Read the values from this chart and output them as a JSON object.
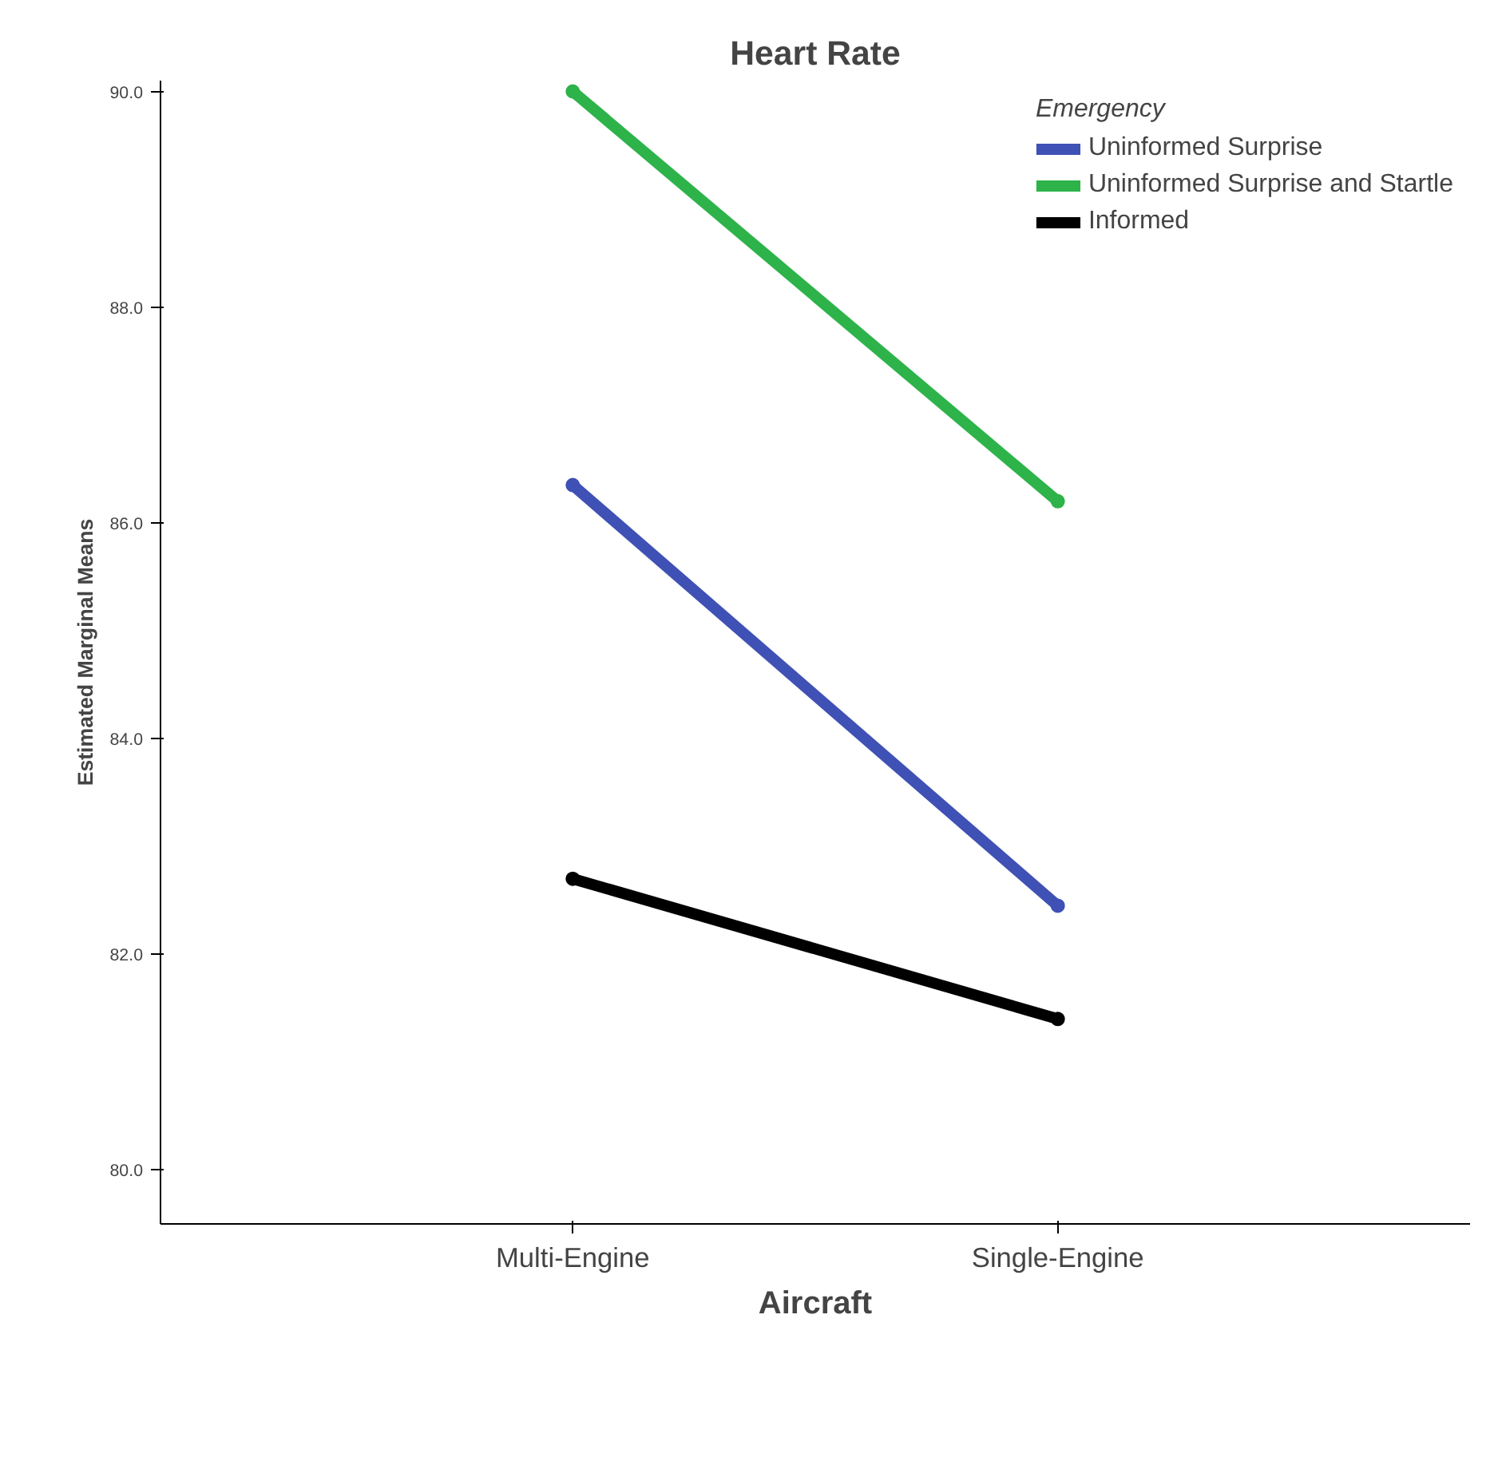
{
  "chart_data": {
    "type": "line",
    "title": "Heart Rate",
    "xlabel": "Aircraft",
    "ylabel": "Estimated Marginal Means",
    "legend_title": "Emergency",
    "categories": [
      "Multi-Engine",
      "Single-Engine"
    ],
    "series": [
      {
        "name": "Uninformed Surprise",
        "color": "#3f51b5",
        "values": [
          86.35,
          82.45
        ]
      },
      {
        "name": "Uninformed Surprise and Startle",
        "color": "#2db34a",
        "values": [
          90.0,
          86.2
        ]
      },
      {
        "name": "Informed",
        "color": "#000000",
        "values": [
          82.7,
          81.4
        ]
      }
    ],
    "ylim": [
      79.5,
      90.1
    ],
    "yticks": [
      {
        "value": 80,
        "label": "80.0"
      },
      {
        "value": 82,
        "label": "82.0"
      },
      {
        "value": 84,
        "label": "84.0"
      },
      {
        "value": 86,
        "label": "86.0"
      },
      {
        "value": 88,
        "label": "88.0"
      },
      {
        "value": 90,
        "label": "90.0"
      }
    ],
    "grid": false,
    "legend": "top right",
    "marker": "circle",
    "line_style": "solid"
  }
}
